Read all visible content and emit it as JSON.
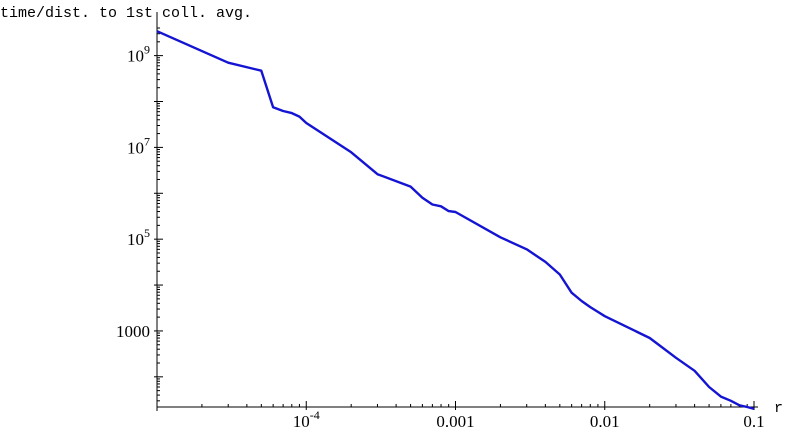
{
  "chart_data": {
    "type": "line",
    "title": "",
    "ylabel": "time/dist. to 1st coll. avg.",
    "xlabel": "r",
    "x_scale": "log",
    "y_scale": "log",
    "xlim": [
      1e-05,
      0.1
    ],
    "ylim": [
      22,
      4000000000
    ],
    "grid": false,
    "line_color": "#1414d2",
    "x_ticks": [
      {
        "value": 0.0001,
        "base": "10",
        "exp": "-4"
      },
      {
        "value": 0.001,
        "label": "0.001"
      },
      {
        "value": 0.01,
        "label": "0.01"
      },
      {
        "value": 0.1,
        "label": "0.1"
      }
    ],
    "y_ticks": [
      {
        "value": 1000000000,
        "base": "10",
        "exp": "9"
      },
      {
        "value": 10000000,
        "base": "10",
        "exp": "7"
      },
      {
        "value": 100000,
        "base": "10",
        "exp": "5"
      },
      {
        "value": 1000,
        "label": "1000"
      }
    ],
    "series": [
      {
        "x": [
          1e-05,
          3e-05,
          5e-05,
          6e-05,
          7e-05,
          8e-05,
          9e-05,
          0.0001,
          0.0002,
          0.0003,
          0.0005,
          0.0006,
          0.0007,
          0.0008,
          0.0009,
          0.001,
          0.002,
          0.003,
          0.004,
          0.005,
          0.006,
          0.007,
          0.008,
          0.009,
          0.01,
          0.02,
          0.03,
          0.04,
          0.05,
          0.06,
          0.07,
          0.08,
          0.09,
          0.1
        ],
        "y": [
          3400000000,
          700000000,
          470000000,
          75000000,
          62000000,
          56000000,
          47000000,
          34000000,
          7800000,
          2600000,
          1400000,
          800000,
          570000,
          520000,
          410000,
          390000,
          110000,
          60000,
          32000,
          17000,
          6800,
          4500,
          3300,
          2600,
          2100,
          700,
          260,
          135,
          60,
          37,
          30,
          24,
          22,
          20
        ]
      }
    ]
  }
}
